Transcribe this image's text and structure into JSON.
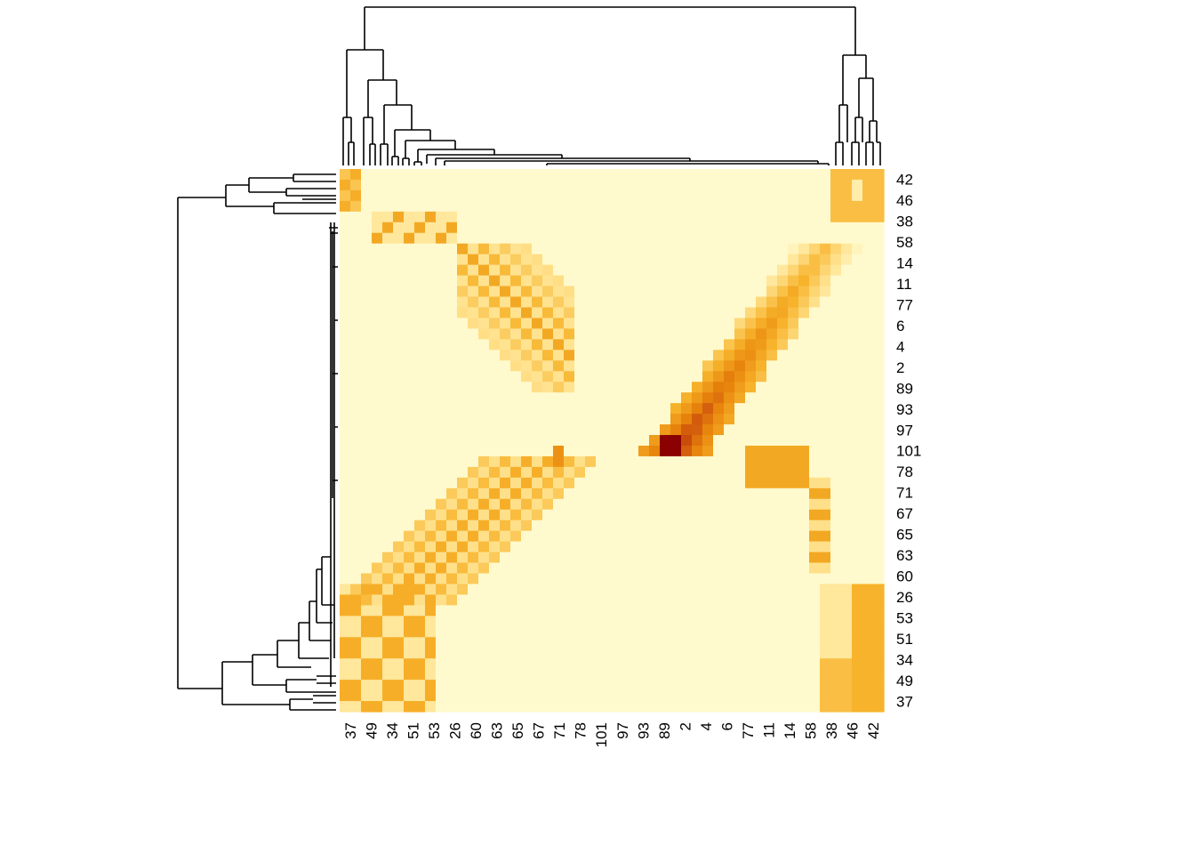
{
  "chart_data": {
    "type": "heatmap",
    "title": "",
    "xlabel": "",
    "ylabel": "",
    "row_labels_shown": [
      "42",
      "46",
      "38",
      "58",
      "14",
      "11",
      "77",
      "6",
      "4",
      "2",
      "89",
      "93",
      "97",
      "101",
      "78",
      "71",
      "67",
      "65",
      "63",
      "60",
      "26",
      "53",
      "51",
      "34",
      "49",
      "37"
    ],
    "col_labels_shown": [
      "37",
      "49",
      "34",
      "51",
      "53",
      "26",
      "60",
      "63",
      "65",
      "67",
      "71",
      "78",
      "101",
      "97",
      "93",
      "89",
      "2",
      "4",
      "6",
      "77",
      "11",
      "14",
      "58",
      "38",
      "46",
      "42"
    ],
    "grid_size": [
      51,
      51
    ],
    "color_scale": [
      "#FFFFCC",
      "#FED976",
      "#FD8D3C",
      "#E31A1C",
      "#800026"
    ],
    "low_color": "#FFFFCC",
    "mid_color": "#F5A623",
    "high_color": "#8B0000",
    "column_dendrogram": "top",
    "row_dendrogram": "left",
    "blocks": [
      {
        "name": "cluster-top-left",
        "intensity": 0.35
      },
      {
        "name": "diagonal-band-upper",
        "intensity": 0.45
      },
      {
        "name": "anti-diagonal-band",
        "intensity": 0.6
      },
      {
        "name": "peak-89-101",
        "intensity": 1.0
      },
      {
        "name": "lower-left-block",
        "intensity": 0.4
      },
      {
        "name": "right-cluster-38-46-42",
        "intensity": 0.4
      }
    ]
  }
}
